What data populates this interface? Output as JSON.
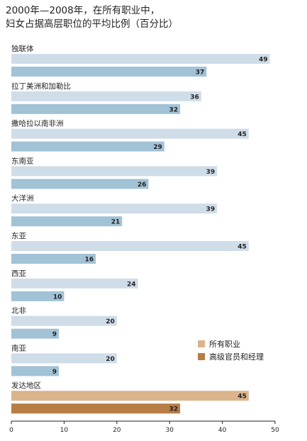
{
  "chart_data": {
    "type": "bar",
    "title_lines": [
      "2000年—2008年，在所有职业中，",
      "妇女占据高层职位的平均比例（百分比）"
    ],
    "categories": [
      "独联体",
      "拉丁美洲和加勒比",
      "撒哈拉以南非洲",
      "东南亚",
      "大洋洲",
      "东亚",
      "西亚",
      "北非",
      "南亚",
      "发达地区"
    ],
    "series": [
      {
        "name": "所有职业",
        "values": [
          49,
          36,
          45,
          39,
          39,
          45,
          24,
          20,
          20,
          45
        ]
      },
      {
        "name": "高级官员和经理",
        "values": [
          37,
          32,
          29,
          26,
          21,
          16,
          10,
          9,
          9,
          32
        ]
      }
    ],
    "xlim": [
      0,
      50
    ],
    "xticks": [
      0,
      10,
      20,
      30,
      40,
      50
    ],
    "legend_position": "bottom-right",
    "colors": {
      "all_regular": "#cfdde9",
      "senior_regular": "#a2c2d6",
      "all_highlight": "#dbb48c",
      "senior_highlight": "#b77d45",
      "axis": "#231f20"
    },
    "highlight_category": "发达地区"
  }
}
